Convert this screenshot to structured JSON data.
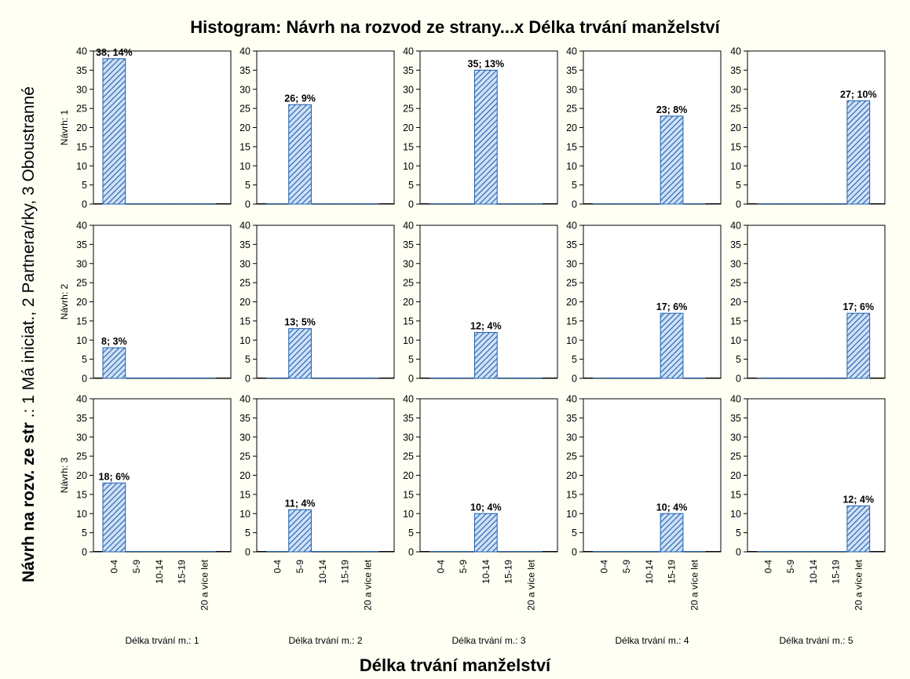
{
  "chart_data": {
    "type": "bar",
    "title": "Histogram: Návrh na rozvod ze strany...x Délka trvání manželství",
    "xlabel": "Délka trvání manželství",
    "ylabel_bold": "Návrh na rozv. ze str",
    "ylabel_rest": " .: 1 Má iniciat., 2 Partnera/rky, 3 Oboustranné",
    "ylim": [
      0,
      40
    ],
    "yticks": [
      "0",
      "5",
      "10",
      "15",
      "20",
      "25",
      "30",
      "35",
      "40"
    ],
    "categories": [
      "0-4",
      "5-9",
      "10-14",
      "15-19",
      "20 a více let"
    ],
    "row_labels": [
      "Návrh: 1",
      "Návrh: 2",
      "Návrh: 3"
    ],
    "col_labels": [
      "Délka trvání m.: 1",
      "Délka trvání m.: 2",
      "Délka trvání m.: 3",
      "Délka trvání m.: 4",
      "Délka trvání m.: 5"
    ],
    "grid": false,
    "bar_fill": "#a9c7ee",
    "bar_stroke": "#1f5fae",
    "panels": [
      [
        {
          "values": [
            38,
            0,
            0,
            0,
            0
          ],
          "label": "38; 14%"
        },
        {
          "values": [
            0,
            26,
            0,
            0,
            0
          ],
          "label": "26; 9%"
        },
        {
          "values": [
            0,
            0,
            35,
            0,
            0
          ],
          "label": "35; 13%"
        },
        {
          "values": [
            0,
            0,
            0,
            23,
            0
          ],
          "label": "23; 8%"
        },
        {
          "values": [
            0,
            0,
            0,
            0,
            27
          ],
          "label": "27; 10%"
        }
      ],
      [
        {
          "values": [
            8,
            0,
            0,
            0,
            0
          ],
          "label": "8; 3%"
        },
        {
          "values": [
            0,
            13,
            0,
            0,
            0
          ],
          "label": "13; 5%"
        },
        {
          "values": [
            0,
            0,
            12,
            0,
            0
          ],
          "label": "12; 4%"
        },
        {
          "values": [
            0,
            0,
            0,
            17,
            0
          ],
          "label": "17; 6%"
        },
        {
          "values": [
            0,
            0,
            0,
            0,
            17
          ],
          "label": "17; 6%"
        }
      ],
      [
        {
          "values": [
            18,
            0,
            0,
            0,
            0
          ],
          "label": "18; 6%"
        },
        {
          "values": [
            0,
            11,
            0,
            0,
            0
          ],
          "label": "11; 4%"
        },
        {
          "values": [
            0,
            0,
            10,
            0,
            0
          ],
          "label": "10; 4%"
        },
        {
          "values": [
            0,
            0,
            0,
            10,
            0
          ],
          "label": "10; 4%"
        },
        {
          "values": [
            0,
            0,
            0,
            0,
            12
          ],
          "label": "12; 4%"
        }
      ]
    ]
  }
}
